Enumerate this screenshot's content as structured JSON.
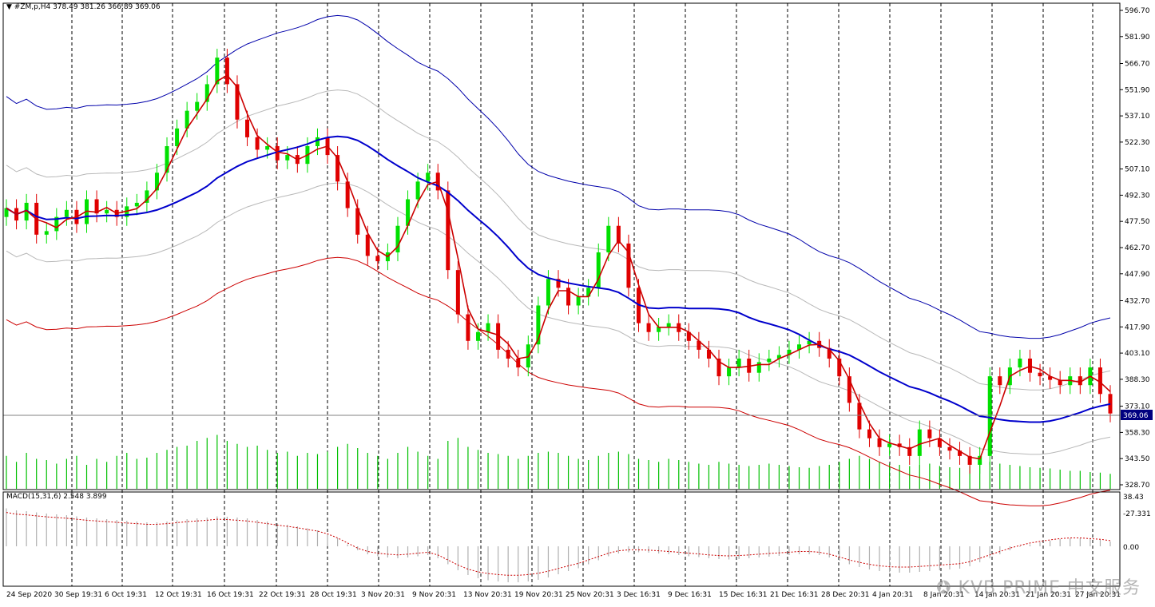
{
  "header": {
    "symbol_text": "#ZM,p,H4",
    "ohlc_text": "378.49 381.26 366.89 369.06"
  },
  "macd": {
    "label": "MACD(15,31,6) 2.548 3.899",
    "axis_top": "38.43",
    "axis_zero": "0.00",
    "axis_bottom": "-27.331"
  },
  "price_tag": "369.06",
  "watermark": "KVB PRIME 中文服务",
  "colors": {
    "bull": "#00e000",
    "bear": "#e00000",
    "ma_fast": "#cc0000",
    "ma_slow": "#0000cc",
    "envelope_outer_top": "#0000aa",
    "envelope_outer_bottom": "#cc0000",
    "envelope_inner": "#b8b8b8",
    "volume": "#00c000",
    "macd_hist": "#b0b0b0",
    "macd_signal": "#cc0000"
  },
  "chart_data": {
    "type": "candlestick",
    "symbol": "#ZM,p,H4",
    "ylim": [
      328.7,
      596.7
    ],
    "y_ticks": [
      "596.70",
      "581.90",
      "566.70",
      "551.90",
      "537.10",
      "522.30",
      "507.10",
      "492.30",
      "477.50",
      "462.70",
      "447.90",
      "432.70",
      "417.90",
      "403.10",
      "388.30",
      "373.10",
      "358.30",
      "343.50",
      "328.70"
    ],
    "x_ticks": [
      "24 Sep 2020",
      "30 Sep 19:31",
      "6 Oct 19:31",
      "12 Oct 19:31",
      "16 Oct 19:31",
      "22 Oct 19:31",
      "28 Oct 19:31",
      "3 Nov 20:31",
      "9 Nov 20:31",
      "13 Nov 20:31",
      "19 Nov 20:31",
      "25 Nov 20:31",
      "3 Dec 16:31",
      "9 Dec 16:31",
      "15 Dec 16:31",
      "21 Dec 16:31",
      "28 Dec 20:31",
      "4 Jan 20:31",
      "8 Jan 20:31",
      "14 Jan 20:31",
      "21 Jan 20:31",
      "27 Jan 20:31"
    ],
    "last_price": 369.06,
    "close": [
      485,
      478,
      488,
      470,
      472,
      480,
      484,
      476,
      490,
      482,
      484,
      480,
      486,
      488,
      495,
      505,
      520,
      530,
      540,
      545,
      555,
      570,
      555,
      535,
      525,
      518,
      520,
      512,
      515,
      510,
      520,
      525,
      515,
      500,
      485,
      470,
      458,
      455,
      460,
      475,
      490,
      500,
      505,
      495,
      450,
      425,
      410,
      415,
      420,
      405,
      400,
      395,
      408,
      430,
      445,
      440,
      430,
      435,
      440,
      460,
      475,
      465,
      440,
      420,
      415,
      418,
      420,
      415,
      410,
      405,
      400,
      390,
      395,
      400,
      392,
      398,
      400,
      402,
      405,
      408,
      410,
      406,
      400,
      390,
      375,
      360,
      355,
      350,
      352,
      350,
      345,
      360,
      355,
      350,
      348,
      345,
      340,
      345,
      390,
      385,
      395,
      400,
      392,
      390,
      388,
      385,
      390,
      385,
      395,
      380,
      369
    ],
    "volume_relative": [
      0.55,
      0.45,
      0.6,
      0.5,
      0.48,
      0.42,
      0.5,
      0.55,
      0.4,
      0.5,
      0.45,
      0.55,
      0.6,
      0.5,
      0.52,
      0.6,
      0.65,
      0.7,
      0.72,
      0.8,
      0.85,
      0.9,
      0.8,
      0.75,
      0.7,
      0.72,
      0.65,
      0.6,
      0.62,
      0.55,
      0.6,
      0.58,
      0.62,
      0.7,
      0.75,
      0.68,
      0.6,
      0.55,
      0.5,
      0.6,
      0.7,
      0.62,
      0.55,
      0.5,
      0.8,
      0.85,
      0.7,
      0.65,
      0.6,
      0.58,
      0.55,
      0.5,
      0.55,
      0.6,
      0.62,
      0.6,
      0.55,
      0.5,
      0.48,
      0.55,
      0.6,
      0.62,
      0.58,
      0.5,
      0.48,
      0.45,
      0.5,
      0.48,
      0.45,
      0.42,
      0.4,
      0.45,
      0.42,
      0.4,
      0.38,
      0.4,
      0.42,
      0.4,
      0.38,
      0.36,
      0.35,
      0.38,
      0.4,
      0.45,
      0.5,
      0.55,
      0.5,
      0.45,
      0.42,
      0.4,
      0.38,
      0.4,
      0.42,
      0.38,
      0.36,
      0.35,
      0.38,
      0.4,
      0.45,
      0.42,
      0.4,
      0.38,
      0.36,
      0.35,
      0.34,
      0.32,
      0.3,
      0.3,
      0.28,
      0.27,
      0.25
    ],
    "macd_hist_relative": [
      0.95,
      0.9,
      0.88,
      0.85,
      0.82,
      0.8,
      0.78,
      0.75,
      0.72,
      0.7,
      0.68,
      0.66,
      0.64,
      0.62,
      0.6,
      0.6,
      0.62,
      0.65,
      0.68,
      0.7,
      0.72,
      0.75,
      0.74,
      0.72,
      0.7,
      0.66,
      0.62,
      0.58,
      0.54,
      0.5,
      0.45,
      0.4,
      0.32,
      0.2,
      0.05,
      -0.1,
      -0.2,
      -0.25,
      -0.28,
      -0.3,
      -0.28,
      -0.25,
      -0.22,
      -0.3,
      -0.45,
      -0.6,
      -0.72,
      -0.8,
      -0.85,
      -0.88,
      -0.9,
      -0.9,
      -0.88,
      -0.84,
      -0.78,
      -0.7,
      -0.62,
      -0.55,
      -0.45,
      -0.35,
      -0.25,
      -0.18,
      -0.15,
      -0.15,
      -0.16,
      -0.18,
      -0.2,
      -0.22,
      -0.25,
      -0.27,
      -0.3,
      -0.32,
      -0.33,
      -0.32,
      -0.3,
      -0.28,
      -0.26,
      -0.24,
      -0.22,
      -0.2,
      -0.2,
      -0.22,
      -0.28,
      -0.36,
      -0.45,
      -0.52,
      -0.58,
      -0.62,
      -0.65,
      -0.66,
      -0.66,
      -0.64,
      -0.62,
      -0.6,
      -0.58,
      -0.56,
      -0.5,
      -0.4,
      -0.3,
      -0.2,
      -0.1,
      -0.02,
      0.05,
      0.1,
      0.14,
      0.18,
      0.2,
      0.2,
      0.18,
      0.16,
      0.12
    ],
    "macd_range": [
      -27.331,
      38.43
    ]
  }
}
